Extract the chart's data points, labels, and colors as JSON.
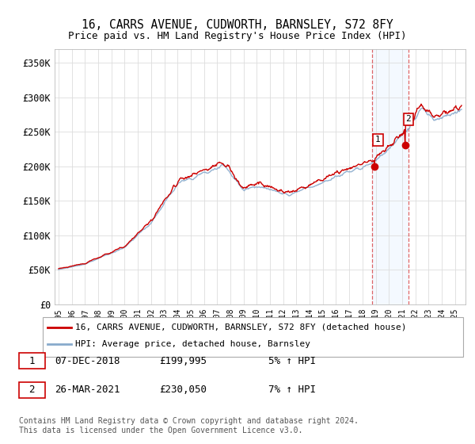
{
  "title": "16, CARRS AVENUE, CUDWORTH, BARNSLEY, S72 8FY",
  "subtitle": "Price paid vs. HM Land Registry's House Price Index (HPI)",
  "ylabel_ticks": [
    "£0",
    "£50K",
    "£100K",
    "£150K",
    "£200K",
    "£250K",
    "£300K",
    "£350K"
  ],
  "ytick_values": [
    0,
    50000,
    100000,
    150000,
    200000,
    250000,
    300000,
    350000
  ],
  "ylim": [
    0,
    370000
  ],
  "xlim_start": 1994.7,
  "xlim_end": 2025.8,
  "legend_red_label": "16, CARRS AVENUE, CUDWORTH, BARNSLEY, S72 8FY (detached house)",
  "legend_blue_label": "HPI: Average price, detached house, Barnsley",
  "transaction1_label": "1",
  "transaction1_date": "07-DEC-2018",
  "transaction1_price": "£199,995",
  "transaction1_hpi": "5% ↑ HPI",
  "transaction2_label": "2",
  "transaction2_date": "26-MAR-2021",
  "transaction2_price": "£230,050",
  "transaction2_hpi": "7% ↑ HPI",
  "footer": "Contains HM Land Registry data © Crown copyright and database right 2024.\nThis data is licensed under the Open Government Licence v3.0.",
  "transaction1_x": 2018.92,
  "transaction2_x": 2021.23,
  "transaction1_y": 199995,
  "transaction2_y": 230050,
  "shade_x1": 2018.75,
  "shade_x2": 2021.5,
  "red_color": "#cc0000",
  "blue_color": "#88aacc",
  "shade_color": "#ddeeff",
  "background_color": "#ffffff",
  "grid_color": "#dddddd",
  "legend_edge_color": "#aaaaaa"
}
